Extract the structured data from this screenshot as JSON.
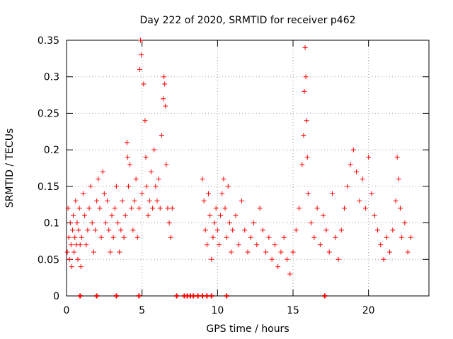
{
  "chart_data": {
    "type": "scatter",
    "title": "Day 222 of 2020, SRMTID for receiver p462",
    "xlabel": "GPS time / hours",
    "ylabel": "SRMTID / TECUs",
    "xlim": [
      0,
      24
    ],
    "ylim": [
      0,
      0.35
    ],
    "xticks": [
      0,
      5,
      10,
      15,
      20
    ],
    "xtick_labels": [
      "0",
      "5",
      "10",
      "15",
      "20"
    ],
    "yticks": [
      0,
      0.05,
      0.1,
      0.15,
      0.2,
      0.25,
      0.3,
      0.35
    ],
    "ytick_labels": [
      "0",
      "0.05",
      "0.1",
      "0.15",
      "0.2",
      "0.25",
      "0.3",
      "0.35"
    ],
    "grid": true,
    "marker": "plus",
    "color": "#ff0000",
    "series": [
      {
        "name": "SRMTID",
        "points": [
          [
            0.05,
            0.06
          ],
          [
            0.1,
            0.12
          ],
          [
            0.15,
            0.08
          ],
          [
            0.2,
            0.05
          ],
          [
            0.25,
            0.1
          ],
          [
            0.3,
            0.07
          ],
          [
            0.35,
            0.04
          ],
          [
            0.4,
            0.09
          ],
          [
            0.45,
            0.11
          ],
          [
            0.5,
            0.06
          ],
          [
            0.55,
            0.08
          ],
          [
            0.6,
            0.13
          ],
          [
            0.65,
            0.07
          ],
          [
            0.7,
            0.1
          ],
          [
            0.75,
            0.05
          ],
          [
            0.8,
            0.09
          ],
          [
            0.85,
            0.12
          ],
          [
            0.9,
            0.07
          ],
          [
            0.95,
            0.04
          ],
          [
            1.0,
            0.08
          ],
          [
            1.1,
            0.14
          ],
          [
            1.2,
            0.11
          ],
          [
            1.3,
            0.07
          ],
          [
            1.4,
            0.09
          ],
          [
            1.5,
            0.12
          ],
          [
            1.6,
            0.15
          ],
          [
            1.7,
            0.1
          ],
          [
            1.8,
            0.06
          ],
          [
            1.9,
            0.09
          ],
          [
            2.0,
            0.13
          ],
          [
            2.1,
            0.16
          ],
          [
            2.2,
            0.12
          ],
          [
            2.3,
            0.08
          ],
          [
            2.4,
            0.17
          ],
          [
            2.5,
            0.14
          ],
          [
            2.6,
            0.1
          ],
          [
            2.7,
            0.13
          ],
          [
            2.8,
            0.09
          ],
          [
            2.9,
            0.06
          ],
          [
            3.0,
            0.11
          ],
          [
            3.1,
            0.08
          ],
          [
            3.2,
            0.12
          ],
          [
            3.3,
            0.15
          ],
          [
            3.4,
            0.1
          ],
          [
            3.5,
            0.06
          ],
          [
            3.6,
            0.09
          ],
          [
            3.7,
            0.13
          ],
          [
            3.8,
            0.08
          ],
          [
            3.9,
            0.11
          ],
          [
            4.0,
            0.21
          ],
          [
            4.05,
            0.19
          ],
          [
            4.1,
            0.15
          ],
          [
            4.2,
            0.18
          ],
          [
            4.3,
            0.12
          ],
          [
            4.4,
            0.09
          ],
          [
            4.5,
            0.13
          ],
          [
            4.6,
            0.16
          ],
          [
            4.7,
            0.08
          ],
          [
            4.8,
            0.12
          ],
          [
            4.85,
            0.31
          ],
          [
            4.9,
            0.35
          ],
          [
            4.95,
            0.33
          ],
          [
            5.0,
            0.14
          ],
          [
            5.1,
            0.29
          ],
          [
            5.2,
            0.24
          ],
          [
            5.25,
            0.19
          ],
          [
            5.3,
            0.15
          ],
          [
            5.4,
            0.11
          ],
          [
            5.5,
            0.13
          ],
          [
            5.6,
            0.17
          ],
          [
            5.7,
            0.12
          ],
          [
            5.8,
            0.2
          ],
          [
            5.9,
            0.15
          ],
          [
            6.0,
            0.13
          ],
          [
            6.1,
            0.16
          ],
          [
            6.2,
            0.12
          ],
          [
            6.3,
            0.22
          ],
          [
            6.4,
            0.27
          ],
          [
            6.45,
            0.3
          ],
          [
            6.5,
            0.29
          ],
          [
            6.55,
            0.26
          ],
          [
            6.6,
            0.18
          ],
          [
            6.7,
            0.12
          ],
          [
            6.8,
            0.1
          ],
          [
            6.9,
            0.08
          ],
          [
            7.0,
            0.12
          ],
          [
            9.0,
            0.16
          ],
          [
            9.1,
            0.13
          ],
          [
            9.2,
            0.09
          ],
          [
            9.3,
            0.07
          ],
          [
            9.4,
            0.14
          ],
          [
            9.5,
            0.11
          ],
          [
            9.6,
            0.05
          ],
          [
            9.7,
            0.08
          ],
          [
            9.8,
            0.1
          ],
          [
            9.9,
            0.12
          ],
          [
            10.0,
            0.09
          ],
          [
            10.1,
            0.07
          ],
          [
            10.2,
            0.11
          ],
          [
            10.3,
            0.14
          ],
          [
            10.4,
            0.16
          ],
          [
            10.5,
            0.12
          ],
          [
            10.6,
            0.08
          ],
          [
            10.7,
            0.15
          ],
          [
            10.8,
            0.1
          ],
          [
            10.9,
            0.06
          ],
          [
            11.0,
            0.09
          ],
          [
            11.2,
            0.11
          ],
          [
            11.4,
            0.07
          ],
          [
            11.6,
            0.13
          ],
          [
            11.8,
            0.09
          ],
          [
            12.0,
            0.06
          ],
          [
            12.2,
            0.08
          ],
          [
            12.4,
            0.1
          ],
          [
            12.6,
            0.07
          ],
          [
            12.8,
            0.12
          ],
          [
            13.0,
            0.09
          ],
          [
            13.2,
            0.06
          ],
          [
            13.4,
            0.08
          ],
          [
            13.6,
            0.05
          ],
          [
            13.8,
            0.07
          ],
          [
            14.0,
            0.04
          ],
          [
            14.2,
            0.06
          ],
          [
            14.4,
            0.08
          ],
          [
            14.6,
            0.05
          ],
          [
            14.8,
            0.03
          ],
          [
            15.0,
            0.06
          ],
          [
            15.2,
            0.09
          ],
          [
            15.4,
            0.12
          ],
          [
            15.6,
            0.18
          ],
          [
            15.7,
            0.22
          ],
          [
            15.75,
            0.28
          ],
          [
            15.8,
            0.34
          ],
          [
            15.85,
            0.3
          ],
          [
            15.9,
            0.24
          ],
          [
            15.95,
            0.19
          ],
          [
            16.0,
            0.14
          ],
          [
            16.2,
            0.1
          ],
          [
            16.4,
            0.08
          ],
          [
            16.6,
            0.12
          ],
          [
            16.8,
            0.07
          ],
          [
            17.0,
            0.11
          ],
          [
            17.2,
            0.09
          ],
          [
            17.4,
            0.06
          ],
          [
            17.6,
            0.14
          ],
          [
            17.8,
            0.08
          ],
          [
            18.0,
            0.05
          ],
          [
            18.2,
            0.09
          ],
          [
            18.4,
            0.12
          ],
          [
            18.6,
            0.15
          ],
          [
            18.8,
            0.18
          ],
          [
            19.0,
            0.2
          ],
          [
            19.2,
            0.17
          ],
          [
            19.4,
            0.13
          ],
          [
            19.6,
            0.16
          ],
          [
            19.8,
            0.12
          ],
          [
            20.0,
            0.19
          ],
          [
            20.2,
            0.14
          ],
          [
            20.4,
            0.11
          ],
          [
            20.6,
            0.09
          ],
          [
            20.8,
            0.07
          ],
          [
            21.0,
            0.05
          ],
          [
            21.2,
            0.08
          ],
          [
            21.4,
            0.06
          ],
          [
            21.6,
            0.09
          ],
          [
            21.8,
            0.13
          ],
          [
            21.9,
            0.19
          ],
          [
            22.0,
            0.16
          ],
          [
            22.1,
            0.12
          ],
          [
            22.2,
            0.08
          ],
          [
            22.4,
            0.1
          ],
          [
            22.6,
            0.06
          ],
          [
            22.8,
            0.08
          ]
        ]
      }
    ],
    "zero_markers_x": [
      0.9,
      2.0,
      3.3,
      4.8,
      7.3,
      7.8,
      8.0,
      8.2,
      8.4,
      8.7,
      9.0,
      9.3,
      9.6,
      10.6,
      17.1
    ]
  }
}
